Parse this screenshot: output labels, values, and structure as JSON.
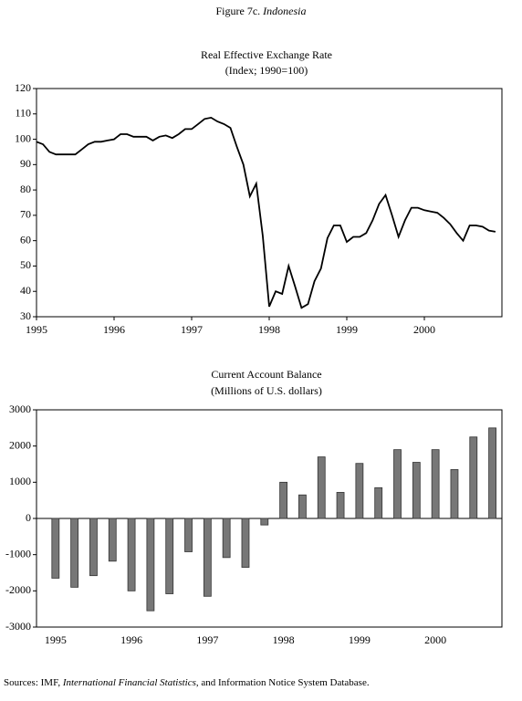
{
  "title_prefix": "Figure 7c.",
  "title_country": "Indonesia",
  "chart_data": [
    {
      "type": "line",
      "title": "Real Effective Exchange Rate",
      "subtitle": "(Index; 1990=100)",
      "color": "#000000",
      "categories": [
        "1995",
        null,
        null,
        null,
        null,
        null,
        null,
        null,
        null,
        null,
        null,
        null,
        "1996",
        null,
        null,
        null,
        null,
        null,
        null,
        null,
        null,
        null,
        null,
        null,
        "1997",
        null,
        null,
        null,
        null,
        null,
        null,
        null,
        null,
        null,
        null,
        null,
        "1998",
        null,
        null,
        null,
        null,
        null,
        null,
        null,
        null,
        null,
        null,
        null,
        "1999",
        null,
        null,
        null,
        null,
        null,
        null,
        null,
        null,
        null,
        null,
        null,
        "2000",
        null,
        null,
        null,
        null,
        null,
        null,
        null,
        null,
        null,
        null,
        null
      ],
      "values": [
        99,
        98,
        95,
        94,
        94,
        94,
        94,
        96,
        98,
        99,
        99,
        99.5,
        100,
        102,
        102,
        101,
        101,
        101,
        99.5,
        101,
        101.5,
        100.5,
        102,
        104,
        104,
        106,
        108,
        108.5,
        107,
        106,
        104.5,
        97,
        90,
        77.5,
        82.5,
        62,
        34,
        40,
        39,
        50,
        42,
        33.5,
        35,
        44,
        49,
        61,
        66,
        66,
        59.5,
        61.5,
        61.5,
        63,
        68,
        74.5,
        78,
        70,
        61.5,
        68,
        73,
        73,
        72,
        71.5,
        71,
        69,
        66.5,
        63,
        60,
        66,
        66,
        65.5,
        64,
        63.5
      ],
      "ylim": [
        30,
        120
      ],
      "yticks": [
        30,
        40,
        50,
        60,
        70,
        80,
        90,
        100,
        110,
        120
      ]
    },
    {
      "type": "bar",
      "title": "Current Account Balance",
      "subtitle": "(Millions of U.S. dollars)",
      "color": "#777777",
      "categories": [
        "1995",
        null,
        null,
        null,
        "1996",
        null,
        null,
        null,
        "1997",
        null,
        null,
        null,
        "1998",
        null,
        null,
        null,
        "1999",
        null,
        null,
        null,
        "2000",
        null,
        null,
        null
      ],
      "values": [
        -1650,
        -1900,
        -1580,
        -1180,
        -2000,
        -2550,
        -2080,
        -920,
        -2150,
        -1080,
        -1350,
        -180,
        1000,
        650,
        1700,
        720,
        1520,
        850,
        1900,
        1550,
        1900,
        1350,
        2250,
        2500
      ],
      "ylim": [
        -3000,
        3000
      ],
      "yticks": [
        -3000,
        -2000,
        -1000,
        0,
        1000,
        2000,
        3000
      ]
    }
  ],
  "source_prefix": "Sources: IMF,",
  "source_italic": "International Financial Statistics",
  "source_suffix": ", and Information Notice System Database."
}
